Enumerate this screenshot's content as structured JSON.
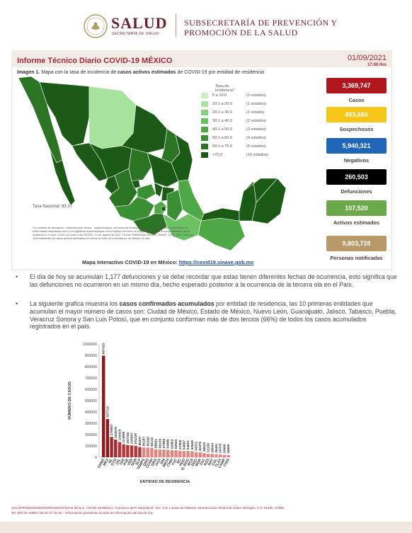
{
  "header": {
    "brand": "SALUD",
    "brand_sub": "SECRETARÍA DE SALUD",
    "subsecretaria_line1": "SUBSECRETARÍA DE PREVENCIÓN Y",
    "subsecretaria_line2": "PROMOCIÓN DE LA SALUD"
  },
  "report": {
    "title": "Informe Técnico Diario COVID-19 MÉXICO",
    "date": "01/09/2021",
    "time": "17:00 Hrs",
    "caption_prefix": "Imagen 1.",
    "caption_text": " Mapa con la tasa de incidencia de ",
    "caption_bold": "casos activos estimados",
    "caption_suffix": " de COVID-19 por entidad de residencia"
  },
  "map": {
    "legend_title": "Tasa de incidencia*",
    "legend": [
      {
        "range": "0   a  10.0",
        "count": "(0 estados)",
        "color": "#c7efc1"
      },
      {
        "range": "10.1 a  20.0",
        "count": "(1 estados)",
        "color": "#a6e39c"
      },
      {
        "range": "20.1 a  30.0",
        "count": "(1 estado)",
        "color": "#86d27c"
      },
      {
        "range": "30.1 a  40.0",
        "count": "(2 estados)",
        "color": "#6cc163"
      },
      {
        "range": "40.1 a  50.0",
        "count": "(3 estados)",
        "color": "#4fa846"
      },
      {
        "range": "50.1 a  60.0",
        "count": "(4 estados)",
        "color": "#3b8f34"
      },
      {
        "range": "60.1 a  70.0",
        "count": "(5 estados)",
        "color": "#2a7424"
      },
      {
        "range": ">70.0",
        "count": "(16 estados)",
        "color": "#1b5a17"
      }
    ],
    "tasa_nacional": "Tasa Nacional: 83.37",
    "notes": "*La variable de asociación / discriminación clínica - epidemiológica, se incorporó al estudio epidemiológico de caso sospechoso de enfermedad respiratoria viral y a la vigilancia epidemiológica con el objetivo de tener un mejor ajustamiento al comportamiento de la epidemia en el país. Cierre con corte a las 09/2021, 31 de agosto de 2021. Fuente: Plataforma SISVER, SINAVE, DGE, SSa. *Tasa por 100k habitantes de casos activos estimados por fecha de inicio de síntomas en los últimos 14 días.",
    "interactive_label": "Mapa Interactivo COVID-19 en México: ",
    "interactive_link": "https://covid19.sinave.gob.mx"
  },
  "stats": [
    {
      "value": "3,369,747",
      "label": "Casos",
      "color": "#b0161d",
      "text_color": "#ffffff"
    },
    {
      "value": "493,660",
      "label": "Sospechosos",
      "color": "#f5c518",
      "text_color": "#ffffff"
    },
    {
      "value": "5,940,321",
      "label": "Negativos",
      "color": "#1f66b8",
      "text_color": "#ffffff"
    },
    {
      "value": "260,503",
      "label": "Defunciones",
      "color": "#000000",
      "text_color": "#ffffff"
    },
    {
      "value": "107,520",
      "label": "Activos estimados",
      "color": "#6aaa4a",
      "text_color": "#ffffff"
    },
    {
      "value": "9,803,728",
      "label": "Personas notificadas",
      "color": "#b9996a",
      "text_color": "#ffffff"
    }
  ],
  "bullets": [
    {
      "text": "El día de hoy se acumulan 1,177 defunciones y se debe recordar que estas tienen diferentes fechas de ocurrencia, esto significa que las defunciones no ocurrieron en un mismo día, hecho esperado posterior a la ocurrencia de la tercera ola en el País."
    },
    {
      "text_before": "La siguiente grafica muestra los ",
      "bold": "casos confirmados acumulados",
      "text_after": " por entidad de residencia, las 10 primeras entidades que acumulan el mayor número de casos son: Ciudad de México, Estado de México, Nuevo León, Guanajuato, Jalisco, Tabasco, Puebla, Veracruz Sonora y San Luis Potosí, que en conjunto conforman más de dos tercios (66%) de todos los casos acumulados registrados en el país."
    }
  ],
  "chart_data": {
    "type": "bar",
    "xlabel": "ENTIDAD DE RESIDENCIA",
    "ylabel": "NÚMERO DE CASOS",
    "ylim": [
      0,
      1000000
    ],
    "yticks": [
      "0",
      "100000",
      "200000",
      "300000",
      "400000",
      "500000",
      "600000",
      "700000",
      "800000",
      "900000",
      "1000000"
    ],
    "categories": [
      "CDMX",
      "MEX",
      "NL",
      "GTO",
      "JAL",
      "TAB",
      "PUE",
      "VER",
      "SON",
      "SLP",
      "TAMPS",
      "QRO",
      "COAH",
      "GRO",
      "OAX",
      "SIN",
      "MICH",
      "CHIH",
      "YUC",
      "BC",
      "HGO",
      "Q. ROO",
      "BCS",
      "DGO",
      "MOR",
      "ZAC",
      "AGS",
      "NAY",
      "COL",
      "TLAX",
      "CAMP",
      "CHIS"
    ],
    "values": [
      897323,
      337715,
      178957,
      155578,
      134418,
      114908,
      107725,
      104507,
      101129,
      90407,
      86187,
      85320,
      82112,
      68681,
      68103,
      67950,
      64896,
      62963,
      62033,
      57000,
      54897,
      54621,
      53659,
      44331,
      42476,
      36523,
      31166,
      29564,
      26481,
      25470,
      19966,
      19685
    ],
    "bar_colors": [
      "#8a1b21",
      "#8a1b21",
      "#a8262c",
      "#a8262c",
      "#b5353a",
      "#b5353a",
      "#b5353a",
      "#b5353a",
      "#b5353a",
      "#b5353a",
      "#e0867e",
      "#e0867e",
      "#e0867e",
      "#e0867e",
      "#e0867e",
      "#e0867e",
      "#e0867e",
      "#e0867e",
      "#e0867e",
      "#e0867e",
      "#e0867e",
      "#e0867e",
      "#e0867e",
      "#e0867e",
      "#e0867e",
      "#e0867e",
      "#e0867e",
      "#e0867e",
      "#e0867e",
      "#e0867e",
      "#e0867e",
      "#e0867e"
    ]
  },
  "footer": {
    "line1": "SSA/SPPS/DGE/DIE/INDRE/UIES/Informe técnico. COVID-19 /México. Francisco de P. Miranda N° 157, Col. Lomas de Plateros, Demarcación Territorial Álvaro Obregón, C.P. 01480, CDMX.",
    "line2": "Tel. 800 00 44800 / 55 53 37 18 45. * Información preliminar al corte de información del día de hoy."
  }
}
